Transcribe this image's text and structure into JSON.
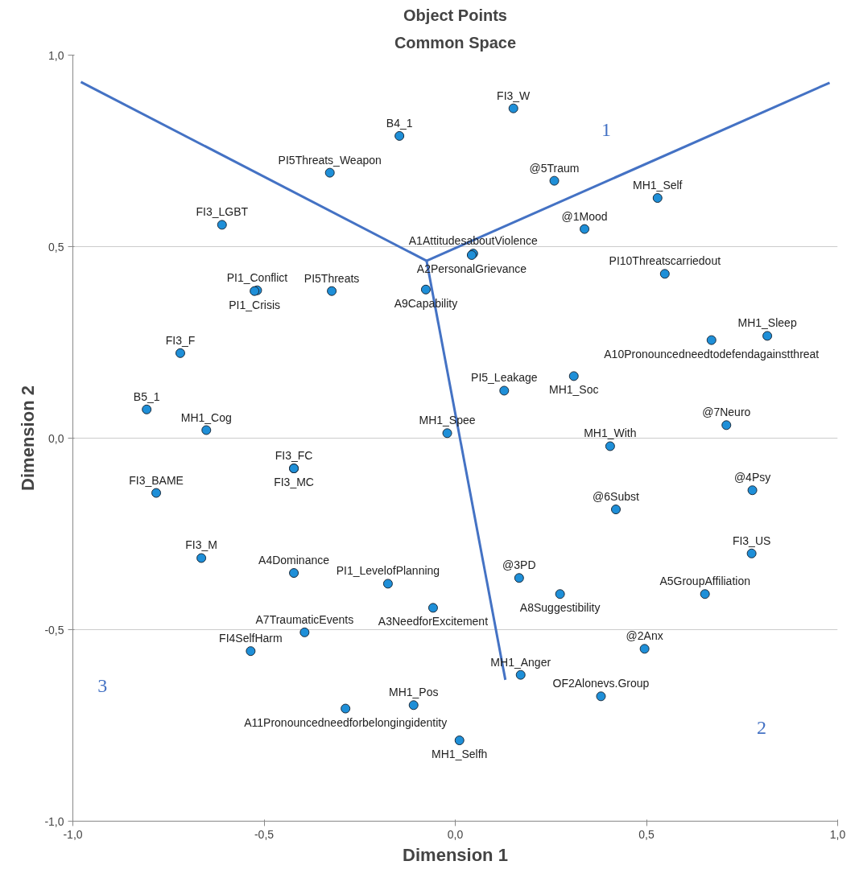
{
  "chart_data": {
    "type": "scatter",
    "title": "Object Points",
    "subtitle": "Common Space",
    "xlabel": "Dimension 1",
    "ylabel": "Dimension 2",
    "xlim": [
      -1,
      1
    ],
    "ylim": [
      -1,
      1
    ],
    "xticks": [
      {
        "value": -1,
        "label": "-1,0"
      },
      {
        "value": -0.5,
        "label": "-0,5"
      },
      {
        "value": 0,
        "label": "0,0"
      },
      {
        "value": 0.5,
        "label": "0,5"
      },
      {
        "value": 1,
        "label": "1,0"
      }
    ],
    "yticks": [
      {
        "value": -1,
        "label": "-1,0"
      },
      {
        "value": -0.5,
        "label": "-0,5"
      },
      {
        "value": 0,
        "label": "0,0"
      },
      {
        "value": 0.5,
        "label": "0,5"
      },
      {
        "value": 1,
        "label": "1,0"
      }
    ],
    "grid": "y",
    "series": [
      {
        "color": "#1e8fd8",
        "marker": "circle",
        "x": [
          0.152,
          -0.146,
          -0.328,
          0.259,
          0.529,
          -0.61,
          0.338,
          0.047,
          0.043,
          0.548,
          -0.077,
          -0.518,
          -0.525,
          -0.323,
          0.67,
          0.816,
          -0.719,
          0.31,
          -0.807,
          0.128,
          0.709,
          -0.651,
          -0.021,
          0.405,
          -0.422,
          -0.422,
          -0.782,
          0.777,
          0.42,
          -0.664,
          0.775,
          -0.422,
          0.167,
          -0.176,
          0.653,
          0.274,
          -0.058,
          -0.394,
          0.495,
          -0.535,
          0.171,
          0.381,
          -0.109,
          -0.287,
          0.011
        ],
        "values": [
          0.861,
          0.789,
          0.693,
          0.672,
          0.627,
          0.557,
          0.546,
          0.482,
          0.478,
          0.429,
          0.388,
          0.386,
          0.384,
          0.384,
          0.256,
          0.267,
          0.222,
          0.162,
          0.075,
          0.124,
          0.034,
          0.021,
          0.013,
          -0.021,
          -0.079,
          -0.079,
          -0.143,
          -0.136,
          -0.186,
          -0.313,
          -0.301,
          -0.352,
          -0.365,
          -0.38,
          -0.407,
          -0.407,
          -0.443,
          -0.507,
          -0.55,
          -0.556,
          -0.618,
          -0.674,
          -0.697,
          -0.706,
          -0.789
        ]
      },
      {
        "type": "line",
        "color": "#4472c4",
        "x": [
          -0.075,
          -0.979
        ],
        "values": [
          0.463,
          0.93
        ]
      },
      {
        "type": "line",
        "color": "#4472c4",
        "x": [
          -0.075,
          0.979
        ],
        "values": [
          0.463,
          0.928
        ]
      },
      {
        "type": "line",
        "color": "#4472c4",
        "x": [
          -0.075,
          0.131
        ],
        "values": [
          0.463,
          -0.631
        ]
      }
    ],
    "annotations": [
      "1",
      "2",
      "3",
      {
        "text": "FI3_W",
        "x": 0.152,
        "y": 0.861
      },
      {
        "text": "B4_1",
        "x": -0.146,
        "y": 0.789
      },
      {
        "text": "PI5Threats_Weapon",
        "x": -0.328,
        "y": 0.693
      },
      {
        "text": "@5Traum",
        "x": 0.259,
        "y": 0.672
      },
      {
        "text": "MH1_Self",
        "x": 0.529,
        "y": 0.627
      },
      {
        "text": "FI3_LGBT",
        "x": -0.61,
        "y": 0.557
      },
      {
        "text": "@1Mood",
        "x": 0.338,
        "y": 0.546
      },
      {
        "text": "A1AttitudesaboutViolence",
        "x": 0.047,
        "y": 0.482
      },
      {
        "text": "A2PersonalGrievance",
        "x": 0.043,
        "y": 0.478
      },
      {
        "text": "PI10Threatscarriedout",
        "x": 0.548,
        "y": 0.429
      },
      {
        "text": "A9Capability",
        "x": -0.077,
        "y": 0.388
      },
      {
        "text": "PI1_Conflict",
        "x": -0.518,
        "y": 0.386
      },
      {
        "text": "PI1_Crisis",
        "x": -0.525,
        "y": 0.384
      },
      {
        "text": "PI5Threats",
        "x": -0.323,
        "y": 0.384
      },
      {
        "text": "A10Pronouncedneedtodefendagainstthreat",
        "x": 0.67,
        "y": 0.256
      },
      {
        "text": "MH1_Sleep",
        "x": 0.816,
        "y": 0.267
      },
      {
        "text": "FI3_F",
        "x": -0.719,
        "y": 0.222
      },
      {
        "text": "MH1_Soc",
        "x": 0.31,
        "y": 0.162
      },
      {
        "text": "B5_1",
        "x": -0.807,
        "y": 0.075
      },
      {
        "text": "PI5_Leakage",
        "x": 0.128,
        "y": 0.124
      },
      {
        "text": "@7Neuro",
        "x": 0.709,
        "y": 0.034
      },
      {
        "text": "MH1_Cog",
        "x": -0.651,
        "y": 0.021
      },
      {
        "text": "MH1_Spee",
        "x": -0.021,
        "y": 0.013
      },
      {
        "text": "MH1_With",
        "x": 0.405,
        "y": -0.021
      },
      {
        "text": "FI3_FC",
        "x": -0.422,
        "y": -0.079
      },
      {
        "text": "FI3_MC",
        "x": -0.422,
        "y": -0.079
      },
      {
        "text": "FI3_BAME",
        "x": -0.782,
        "y": -0.143
      },
      {
        "text": "@4Psy",
        "x": 0.777,
        "y": -0.136
      },
      {
        "text": "@6Subst",
        "x": 0.42,
        "y": -0.186
      },
      {
        "text": "FI3_M",
        "x": -0.664,
        "y": -0.313
      },
      {
        "text": "FI3_US",
        "x": 0.775,
        "y": -0.301
      },
      {
        "text": "A4Dominance",
        "x": -0.422,
        "y": -0.352
      },
      {
        "text": "@3PD",
        "x": 0.167,
        "y": -0.365
      },
      {
        "text": "PI1_LevelofPlanning",
        "x": -0.176,
        "y": -0.38
      },
      {
        "text": "A5GroupAffiliation",
        "x": 0.653,
        "y": -0.407
      },
      {
        "text": "A8Suggestibility",
        "x": 0.274,
        "y": -0.407
      },
      {
        "text": "A3NeedforExcitement",
        "x": -0.058,
        "y": -0.443
      },
      {
        "text": "A7TraumaticEvents",
        "x": -0.394,
        "y": -0.507
      },
      {
        "text": "@2Anx",
        "x": 0.495,
        "y": -0.55
      },
      {
        "text": "FI4SelfHarm",
        "x": -0.535,
        "y": -0.556
      },
      {
        "text": "MH1_Anger",
        "x": 0.171,
        "y": -0.618
      },
      {
        "text": "OF2Alonevs.Group",
        "x": 0.381,
        "y": -0.674
      },
      {
        "text": "MH1_Pos",
        "x": -0.109,
        "y": -0.697
      },
      {
        "text": "A11Pronouncedneedforbelongingidentity",
        "x": -0.287,
        "y": -0.706
      },
      {
        "text": "MH1_Selfh",
        "x": 0.011,
        "y": -0.789
      }
    ]
  }
}
